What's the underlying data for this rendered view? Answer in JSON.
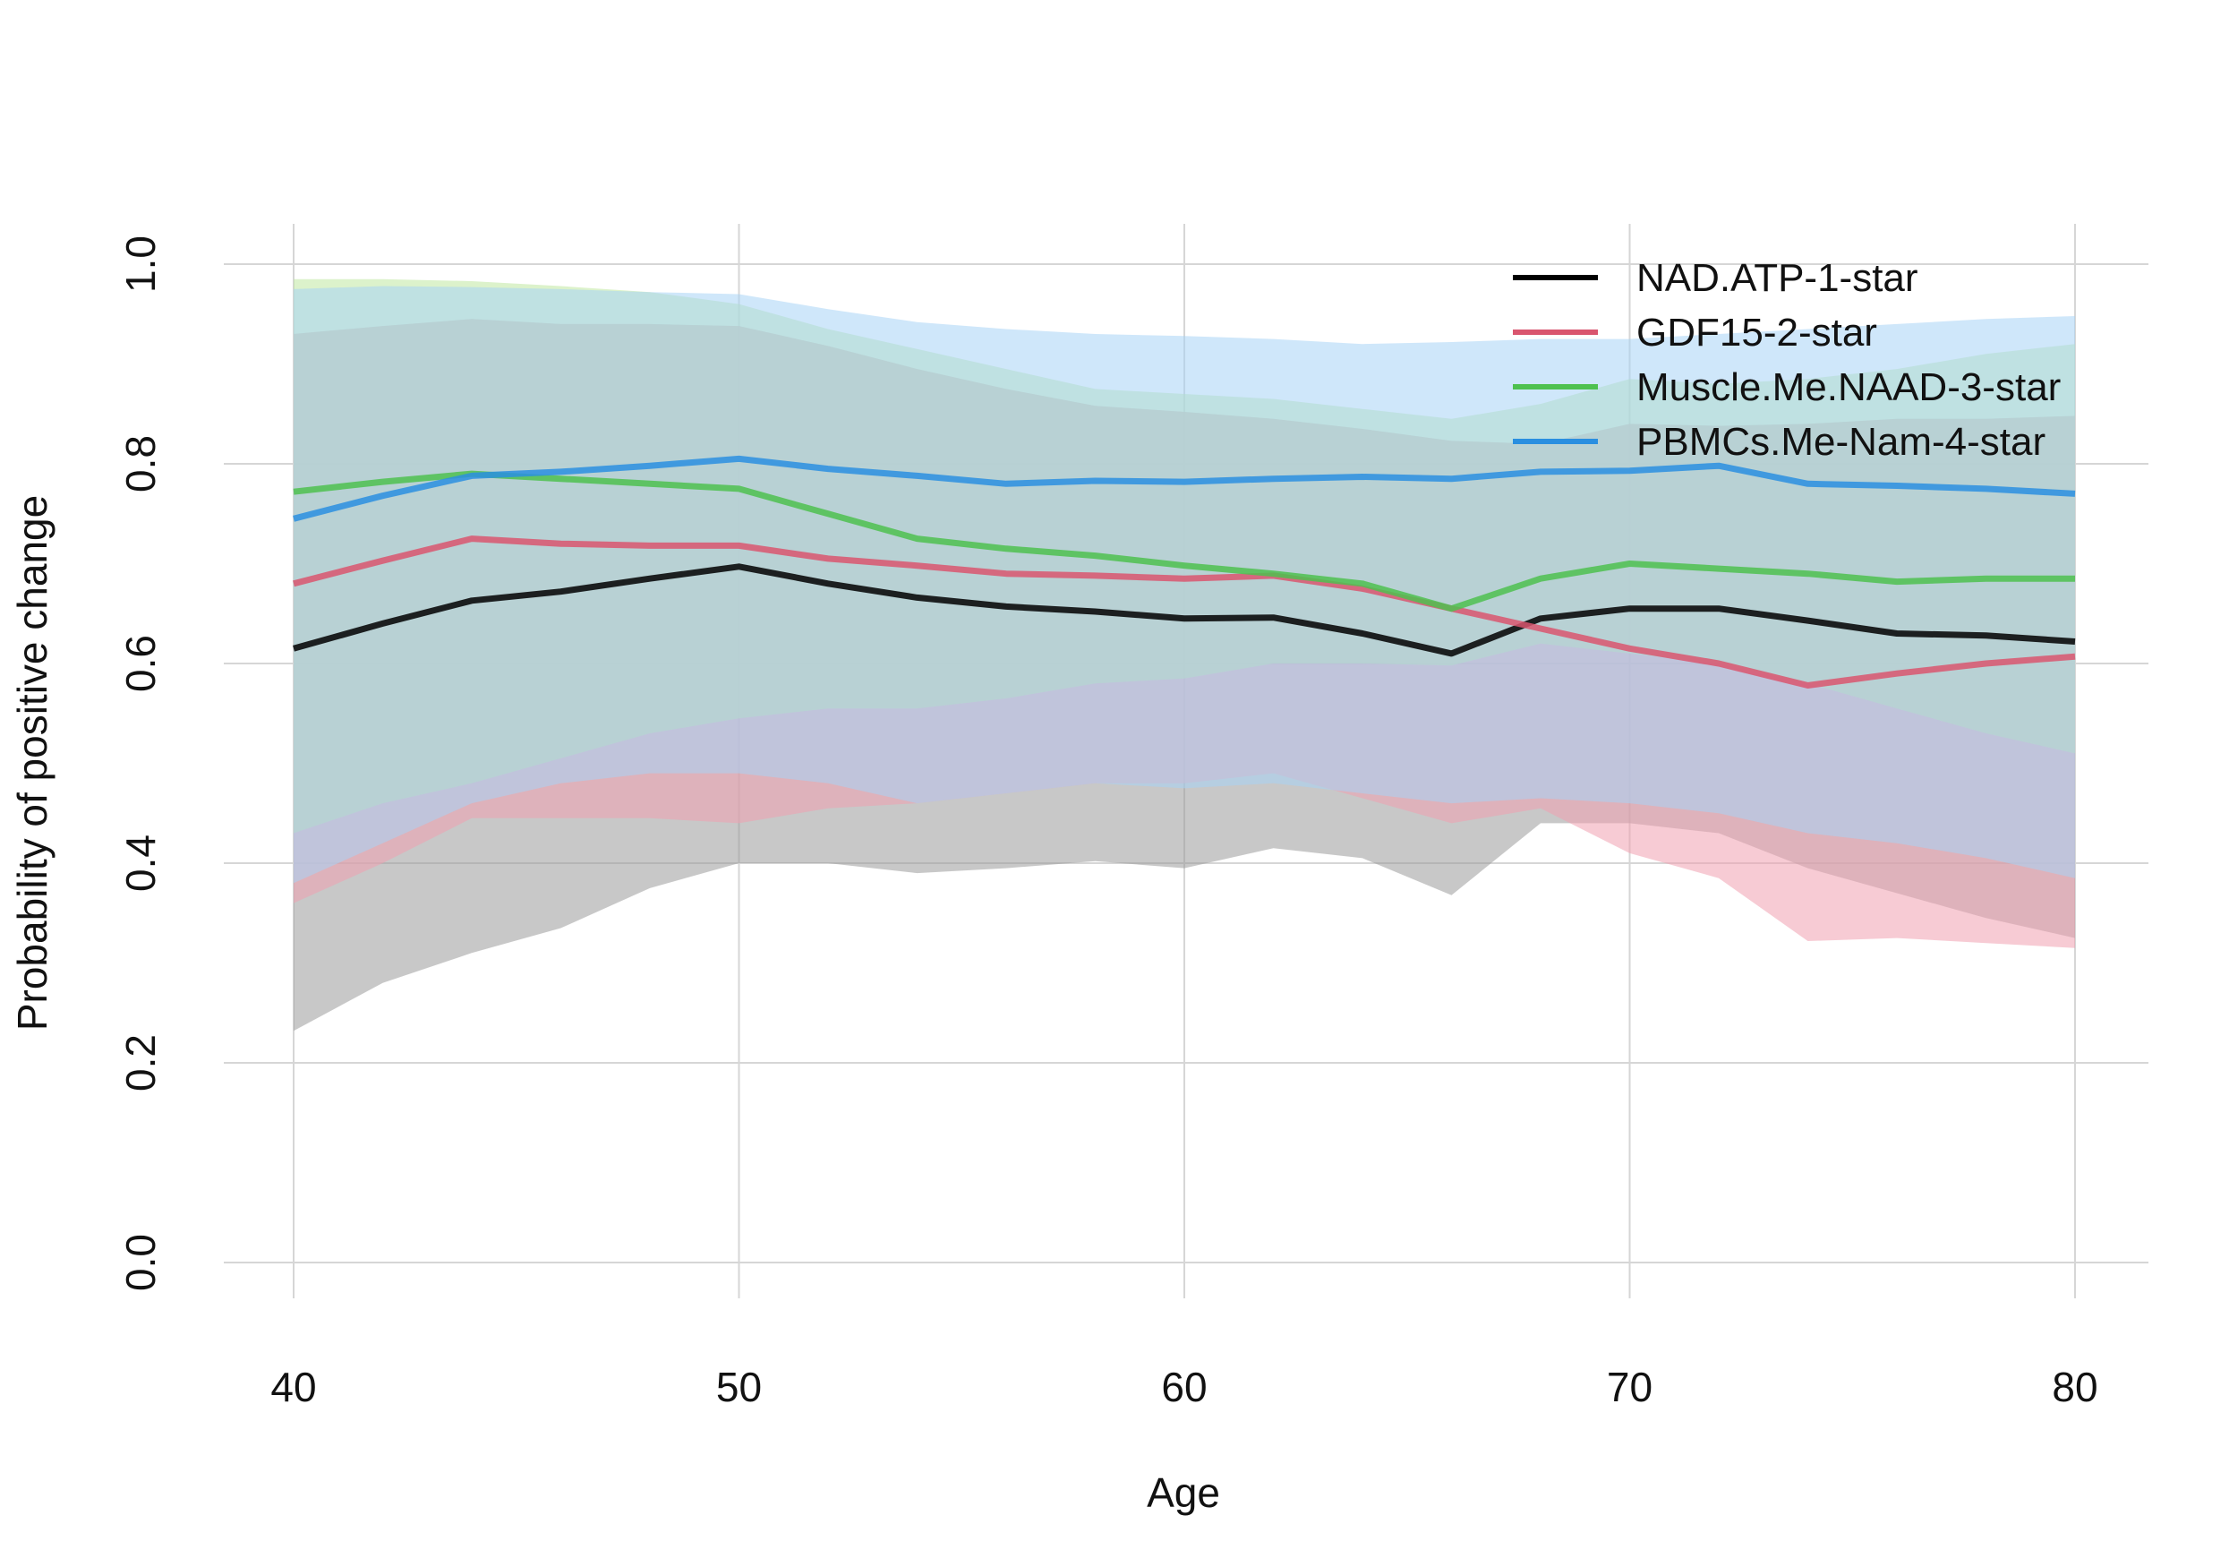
{
  "chart_data": {
    "type": "line",
    "title": "",
    "xlabel": "Age",
    "ylabel": "Probability of positive change",
    "xlim": [
      40,
      80
    ],
    "ylim": [
      0.0,
      1.0
    ],
    "x_ticks": [
      40,
      50,
      60,
      70,
      80
    ],
    "x_tick_labels": [
      "40",
      "50",
      "60",
      "70",
      "80"
    ],
    "y_ticks": [
      0.0,
      0.2,
      0.4,
      0.6,
      0.8,
      1.0
    ],
    "y_tick_labels": [
      "0.0",
      "0.2",
      "0.4",
      "0.6",
      "0.8",
      "1.0"
    ],
    "grid": true,
    "legend_position": "top-right",
    "x": [
      40,
      42,
      44,
      46,
      48,
      50,
      52,
      54,
      56,
      58,
      60,
      62,
      64,
      66,
      68,
      70,
      72,
      74,
      76,
      78,
      80
    ],
    "series": [
      {
        "name": "NAD.ATP-1-star",
        "color": "#000000",
        "band_color": "#9a9a9a",
        "values": [
          0.615,
          0.64,
          0.663,
          0.672,
          0.685,
          0.697,
          0.68,
          0.666,
          0.657,
          0.652,
          0.645,
          0.646,
          0.63,
          0.61,
          0.645,
          0.655,
          0.655,
          0.643,
          0.63,
          0.628,
          0.622
        ],
        "lower": [
          0.232,
          0.28,
          0.31,
          0.335,
          0.375,
          0.4,
          0.4,
          0.39,
          0.395,
          0.402,
          0.395,
          0.415,
          0.405,
          0.368,
          0.44,
          0.44,
          0.43,
          0.395,
          0.37,
          0.345,
          0.325
        ],
        "upper": [
          0.93,
          0.938,
          0.945,
          0.94,
          0.94,
          0.938,
          0.918,
          0.895,
          0.875,
          0.858,
          0.852,
          0.845,
          0.835,
          0.823,
          0.82,
          0.84,
          0.838,
          0.84,
          0.845,
          0.845,
          0.848
        ]
      },
      {
        "name": "GDF15-2-star",
        "color": "#d9566f",
        "band_color": "#f1a0b0",
        "values": [
          0.68,
          0.703,
          0.725,
          0.72,
          0.718,
          0.718,
          0.705,
          0.698,
          0.69,
          0.688,
          0.685,
          0.688,
          0.675,
          0.655,
          0.635,
          0.615,
          0.6,
          0.578,
          0.59,
          0.6,
          0.607
        ],
        "lower": [
          0.36,
          0.4,
          0.445,
          0.445,
          0.445,
          0.44,
          0.455,
          0.46,
          0.47,
          0.48,
          0.48,
          0.49,
          0.465,
          0.44,
          0.455,
          0.41,
          0.385,
          0.322,
          0.325,
          0.32,
          0.315
        ],
        "upper": [
          0.93,
          0.938,
          0.945,
          0.94,
          0.94,
          0.938,
          0.918,
          0.895,
          0.875,
          0.858,
          0.852,
          0.845,
          0.835,
          0.823,
          0.82,
          0.84,
          0.838,
          0.84,
          0.845,
          0.845,
          0.848
        ]
      },
      {
        "name": "Muscle.Me.NAAD-3-star",
        "color": "#4ec14f",
        "band_color": "#bfe8a0",
        "values": [
          0.772,
          0.782,
          0.79,
          0.785,
          0.78,
          0.775,
          0.75,
          0.725,
          0.715,
          0.708,
          0.698,
          0.69,
          0.68,
          0.655,
          0.685,
          0.7,
          0.695,
          0.69,
          0.682,
          0.685,
          0.685
        ],
        "lower": [
          0.43,
          0.46,
          0.48,
          0.505,
          0.53,
          0.545,
          0.555,
          0.555,
          0.565,
          0.58,
          0.585,
          0.6,
          0.6,
          0.598,
          0.62,
          0.61,
          0.6,
          0.58,
          0.555,
          0.53,
          0.51
        ],
        "upper": [
          0.985,
          0.985,
          0.983,
          0.978,
          0.972,
          0.96,
          0.935,
          0.915,
          0.895,
          0.875,
          0.87,
          0.865,
          0.855,
          0.845,
          0.86,
          0.885,
          0.88,
          0.885,
          0.895,
          0.91,
          0.92
        ]
      },
      {
        "name": "PBMCs.Me-Nam-4-star",
        "color": "#2a8fe0",
        "band_color": "#a8d4f5",
        "values": [
          0.745,
          0.768,
          0.788,
          0.792,
          0.798,
          0.805,
          0.795,
          0.788,
          0.78,
          0.783,
          0.782,
          0.785,
          0.787,
          0.785,
          0.792,
          0.793,
          0.798,
          0.78,
          0.778,
          0.775,
          0.77
        ],
        "lower": [
          0.38,
          0.42,
          0.46,
          0.48,
          0.49,
          0.49,
          0.48,
          0.46,
          0.47,
          0.48,
          0.475,
          0.48,
          0.47,
          0.46,
          0.465,
          0.46,
          0.45,
          0.43,
          0.42,
          0.405,
          0.385
        ],
        "upper": [
          0.975,
          0.978,
          0.977,
          0.975,
          0.972,
          0.97,
          0.955,
          0.942,
          0.935,
          0.93,
          0.928,
          0.925,
          0.92,
          0.922,
          0.925,
          0.925,
          0.93,
          0.935,
          0.94,
          0.945,
          0.948
        ]
      }
    ]
  }
}
